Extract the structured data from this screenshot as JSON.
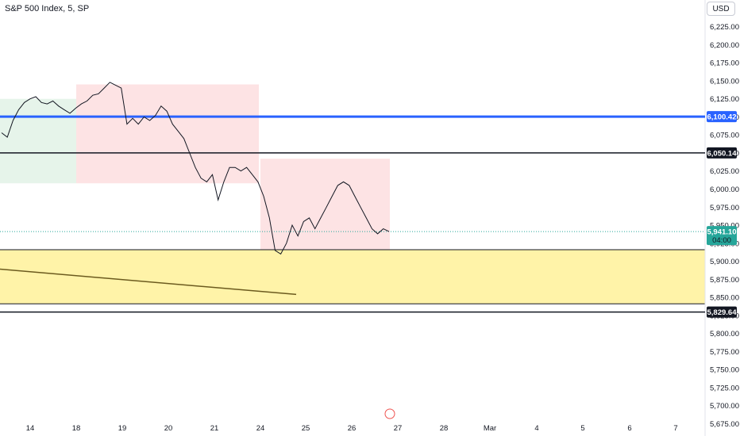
{
  "header": {
    "title": "S&P 500 Index, 5, SP",
    "currency": "USD"
  },
  "colors": {
    "blue_line": "#2962ff",
    "up": "#26a69a",
    "down": "#ef5350",
    "green_zone": "#e6f4ea",
    "red_zone": "#fde3e4",
    "yellow_zone": "#fff3a8",
    "trendline": "#6b5a1e"
  },
  "chart_data": {
    "type": "line",
    "y_axis": {
      "ylim": [
        5660,
        6262
      ],
      "ticks": [
        "6,225.00",
        "6,200.00",
        "6,175.00",
        "6,150.00",
        "6,125.00",
        "6,100.00",
        "6,075.00",
        "6,050.00",
        "6,025.00",
        "6,000.00",
        "5,975.00",
        "5,950.00",
        "5,925.00",
        "5,900.00",
        "5,875.00",
        "5,850.00",
        "5,825.00",
        "5,800.00",
        "5,775.00",
        "5,750.00",
        "5,725.00",
        "5,700.00",
        "5,675.00"
      ],
      "tick_values": [
        6225,
        6200,
        6175,
        6150,
        6125,
        6100,
        6075,
        6050,
        6025,
        6000,
        5975,
        5950,
        5925,
        5900,
        5875,
        5850,
        5825,
        5800,
        5775,
        5750,
        5725,
        5700,
        5675
      ]
    },
    "x_axis": {
      "ticks": [
        "14",
        "18",
        "19",
        "20",
        "21",
        "24",
        "25",
        "26",
        "27",
        "28",
        "Mar",
        "4",
        "5",
        "6",
        "7"
      ]
    },
    "horizontal_levels": [
      {
        "label": "6,100.42",
        "value": 6100.42,
        "style": "blue"
      },
      {
        "label": "6,050.14",
        "value": 6050.14,
        "style": "black"
      },
      {
        "label": "5,829.64",
        "value": 5829.64,
        "style": "black"
      }
    ],
    "last_price": {
      "label": "5,941.10",
      "value": 5941.1,
      "countdown": "04:00"
    },
    "yellow_zone": {
      "top": 5916,
      "bottom": 5841
    },
    "series": [
      {
        "values": [
          6078,
          6072,
          6095,
          6110,
          6120,
          6125,
          6128,
          6120,
          6118,
          6122,
          6115,
          6110,
          6105,
          6112,
          6118,
          6122,
          6130,
          6132,
          6140,
          6148,
          6144,
          6140,
          6090,
          6098,
          6090,
          6100,
          6095,
          6102,
          6115,
          6108,
          6090,
          6080,
          6070,
          6050,
          6030,
          6015,
          6010,
          6020,
          5985,
          6010,
          6030,
          6030,
          6025,
          6030,
          6020,
          6010,
          5990,
          5960,
          5915,
          5910,
          5925,
          5950,
          5935,
          5955,
          5960,
          5945,
          5960,
          5975,
          5990,
          6005,
          6010,
          6005,
          5990,
          5975,
          5960,
          5945,
          5938,
          5945,
          5941.1
        ]
      }
    ]
  }
}
